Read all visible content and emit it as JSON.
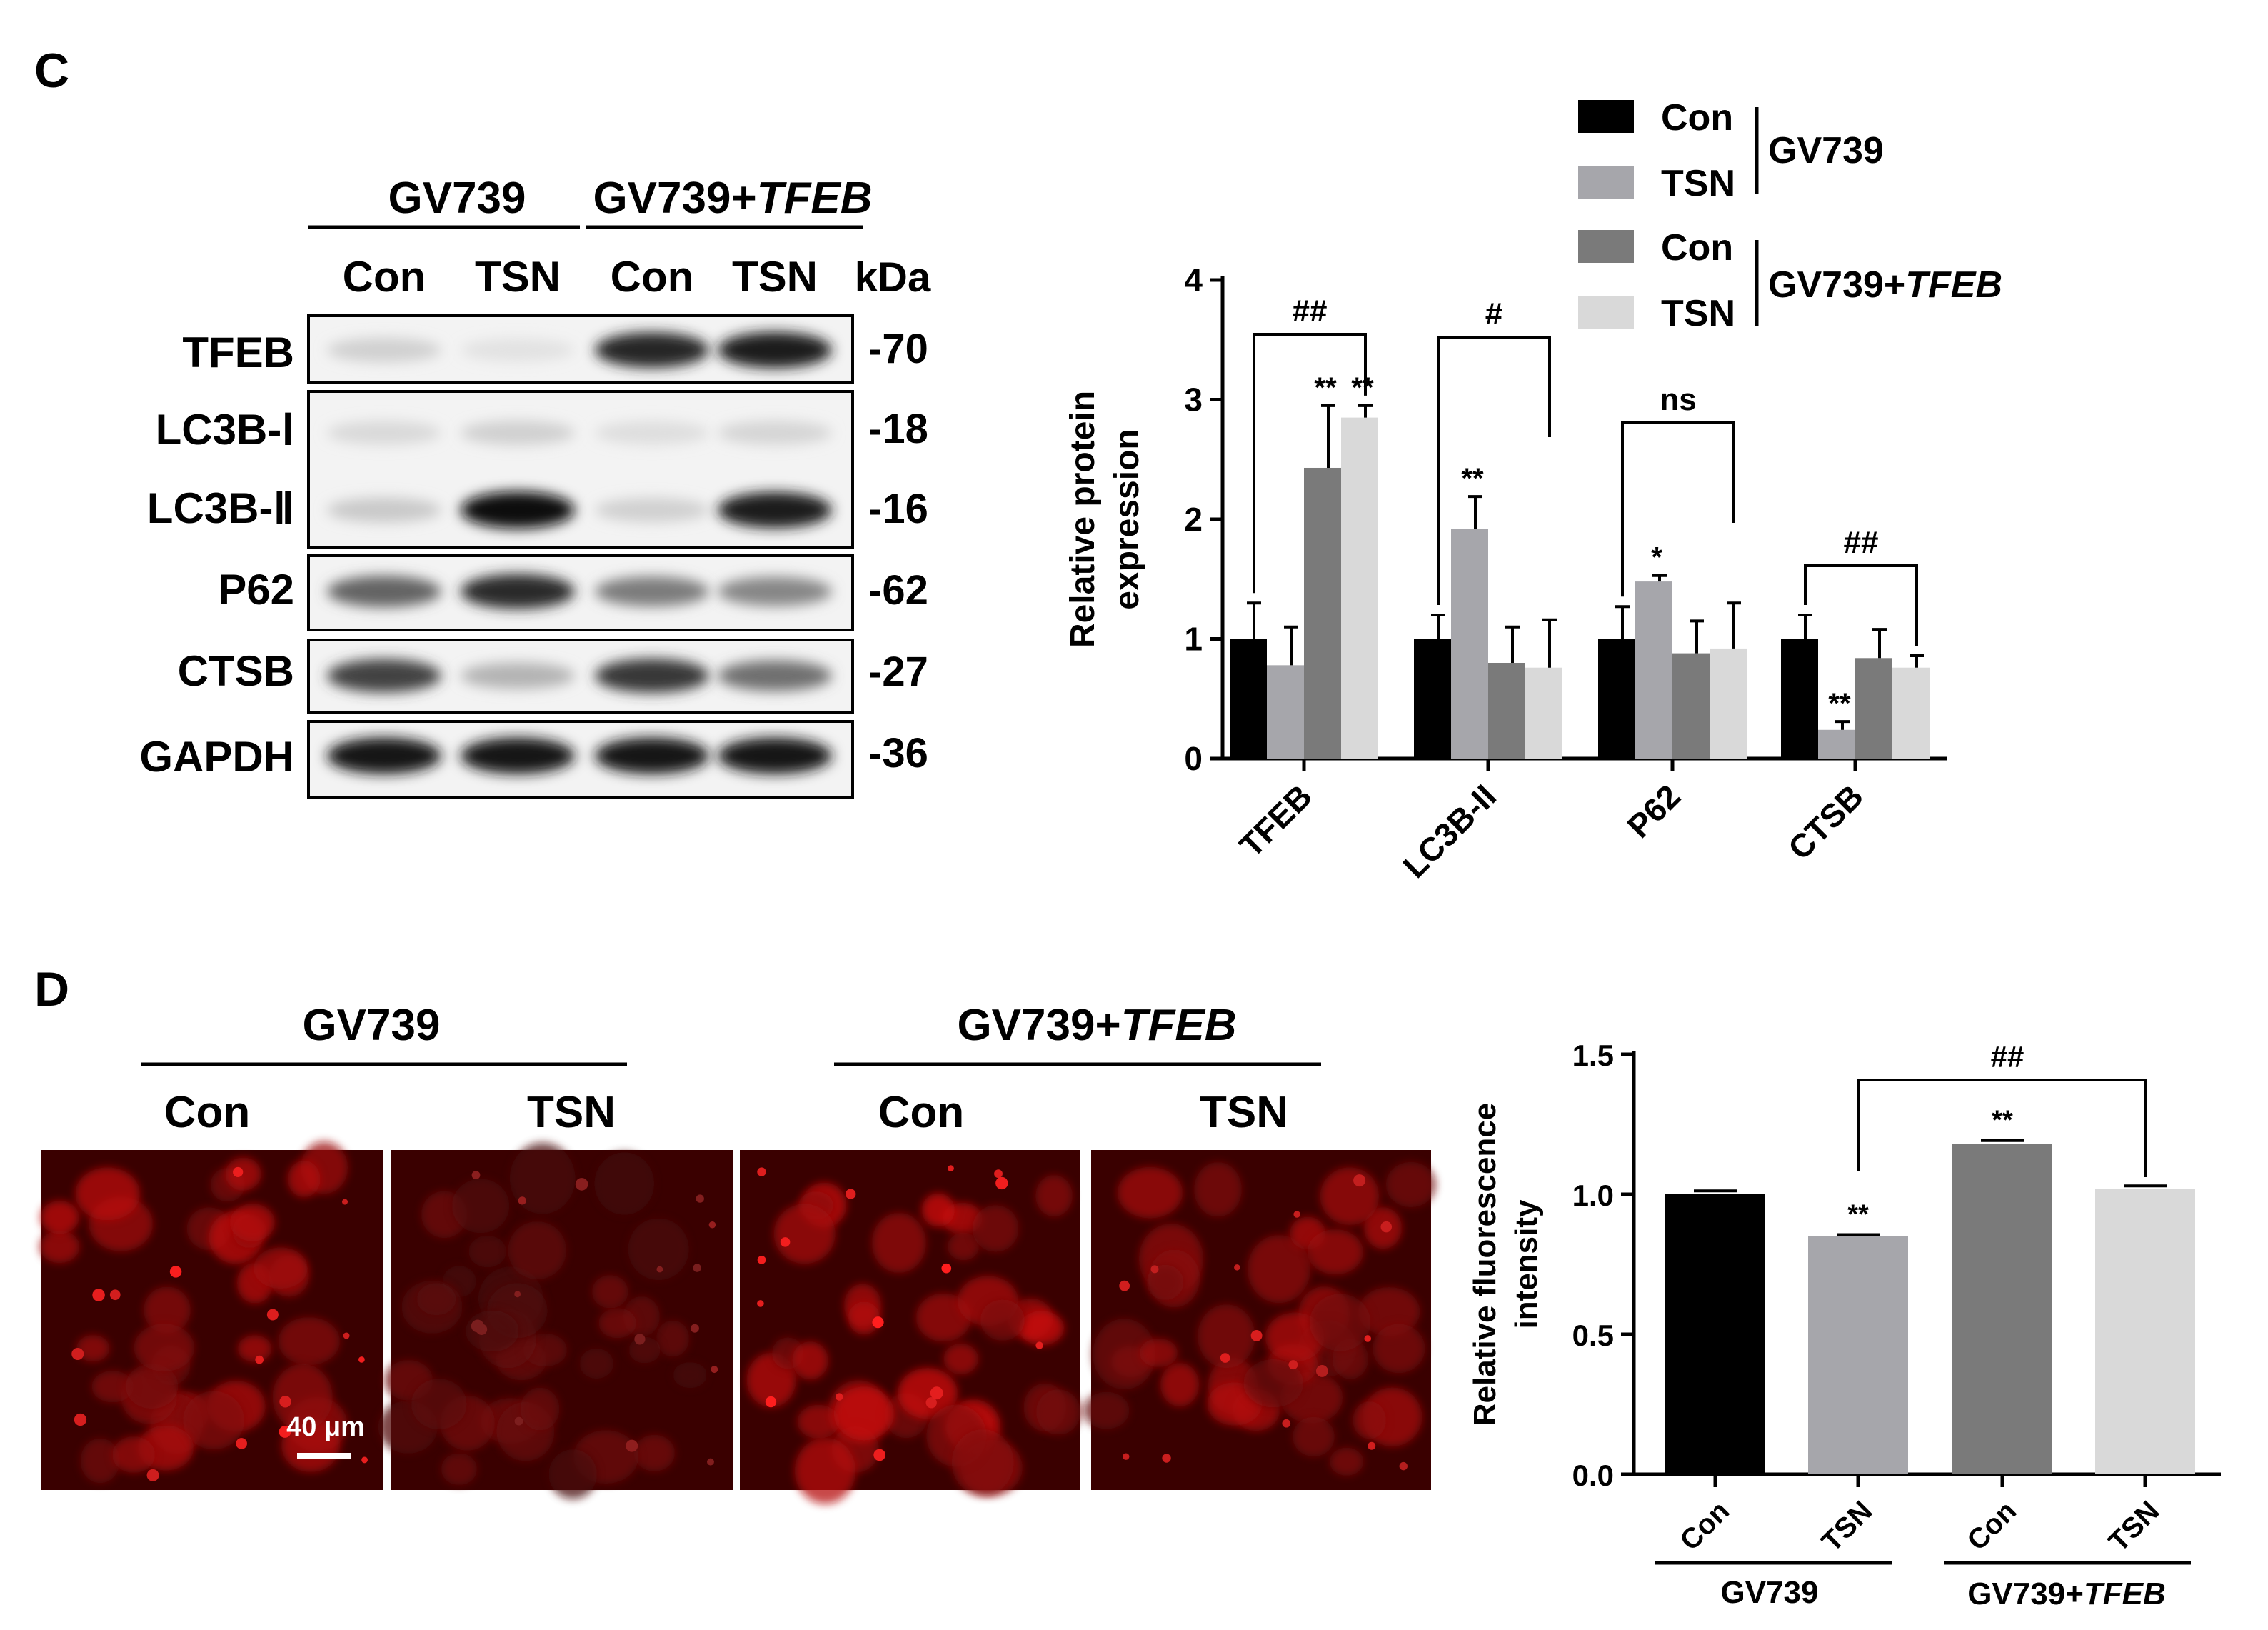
{
  "panel_c": {
    "label": "C",
    "western_blot": {
      "group_headers": [
        {
          "name": "GV739",
          "italic": ""
        },
        {
          "name": "GV739+",
          "italic": "TFEB"
        }
      ],
      "lane_labels": [
        "Con",
        "TSN",
        "Con",
        "TSN"
      ],
      "kda_label": "kDa",
      "rows": [
        {
          "label": "TFEB",
          "kda": "-70",
          "lane_intensity": [
            0.12,
            0.04,
            0.88,
            0.92
          ]
        },
        {
          "label": "LC3B-Ⅰ",
          "kda": "-18",
          "lane_intensity": [
            0.08,
            0.12,
            0.06,
            0.1
          ]
        },
        {
          "label": "LC3B-Ⅱ",
          "kda": "-16",
          "lane_intensity": [
            0.15,
            1.0,
            0.12,
            0.92
          ]
        },
        {
          "label": "P62",
          "kda": "-62",
          "lane_intensity": [
            0.6,
            0.85,
            0.5,
            0.45
          ]
        },
        {
          "label": "CTSB",
          "kda": "-27",
          "lane_intensity": [
            0.75,
            0.25,
            0.8,
            0.55
          ]
        },
        {
          "label": "GAPDH",
          "kda": "-36",
          "lane_intensity": [
            0.95,
            0.95,
            0.95,
            0.95
          ]
        }
      ]
    }
  },
  "panel_d": {
    "label": "D",
    "group_headers": [
      {
        "name": "GV739",
        "italic": ""
      },
      {
        "name": "GV739+",
        "italic": "TFEB"
      }
    ],
    "image_labels": [
      "Con",
      "TSN",
      "Con",
      "TSN"
    ],
    "scale_bar": "40 μm"
  },
  "chart_data": [
    {
      "type": "bar",
      "ylabel": "Relative protein expression",
      "ylim": [
        0,
        4
      ],
      "yticks": [
        "0",
        "1",
        "2",
        "3",
        "4"
      ],
      "categories": [
        "TFEB",
        "LC3B-II",
        "P62",
        "CTSB"
      ],
      "legend": {
        "entries": [
          "Con",
          "TSN",
          "Con",
          "TSN"
        ],
        "groups": [
          {
            "name": "GV739",
            "italic": ""
          },
          {
            "name": "GV739+",
            "italic": "TFEB"
          }
        ],
        "placement": "top-right"
      },
      "series": [
        {
          "name": "Con",
          "color": "#000000",
          "values": [
            1.0,
            1.0,
            1.0,
            1.0
          ],
          "errors": [
            0.3,
            0.2,
            0.27,
            0.2
          ],
          "marks": [
            "",
            "",
            "",
            ""
          ]
        },
        {
          "name": "TSN",
          "color": "#a6a6ab",
          "values": [
            0.78,
            1.92,
            1.48,
            0.24
          ],
          "errors": [
            0.32,
            0.27,
            0.05,
            0.07
          ],
          "marks": [
            "",
            "**",
            "*",
            "**"
          ]
        },
        {
          "name": "Con",
          "color": "#7a7a7a",
          "values": [
            2.43,
            0.8,
            0.88,
            0.84
          ],
          "errors": [
            0.52,
            0.3,
            0.27,
            0.24
          ],
          "marks": [
            "**",
            "",
            "",
            ""
          ]
        },
        {
          "name": "TSN",
          "color": "#d9d9d9",
          "values": [
            2.85,
            0.76,
            0.92,
            0.76
          ],
          "errors": [
            0.1,
            0.4,
            0.38,
            0.1
          ],
          "marks": [
            "**",
            "",
            "",
            ""
          ]
        }
      ],
      "comparisons": [
        "##",
        "#",
        "ns",
        "##"
      ]
    },
    {
      "type": "bar",
      "ylabel": "Relative fluorescence intensity",
      "ylim": [
        0,
        1.5
      ],
      "yticks": [
        "0.0",
        "0.5",
        "1.0",
        "1.5"
      ],
      "categories": [
        "Con",
        "TSN",
        "Con",
        "TSN"
      ],
      "values": [
        1.0,
        0.85,
        1.18,
        1.02
      ],
      "errors": [
        0.012,
        0.006,
        0.012,
        0.01
      ],
      "marks": [
        "",
        "**",
        "**",
        ""
      ],
      "colors": [
        "#000000",
        "#a6a6ab",
        "#7a7a7a",
        "#d9d9d9"
      ],
      "comparison": {
        "label": "##",
        "from": 1,
        "to": 3
      },
      "groups": [
        {
          "name": "GV739",
          "italic": ""
        },
        {
          "name": "GV739+",
          "italic": "TFEB"
        }
      ]
    }
  ]
}
